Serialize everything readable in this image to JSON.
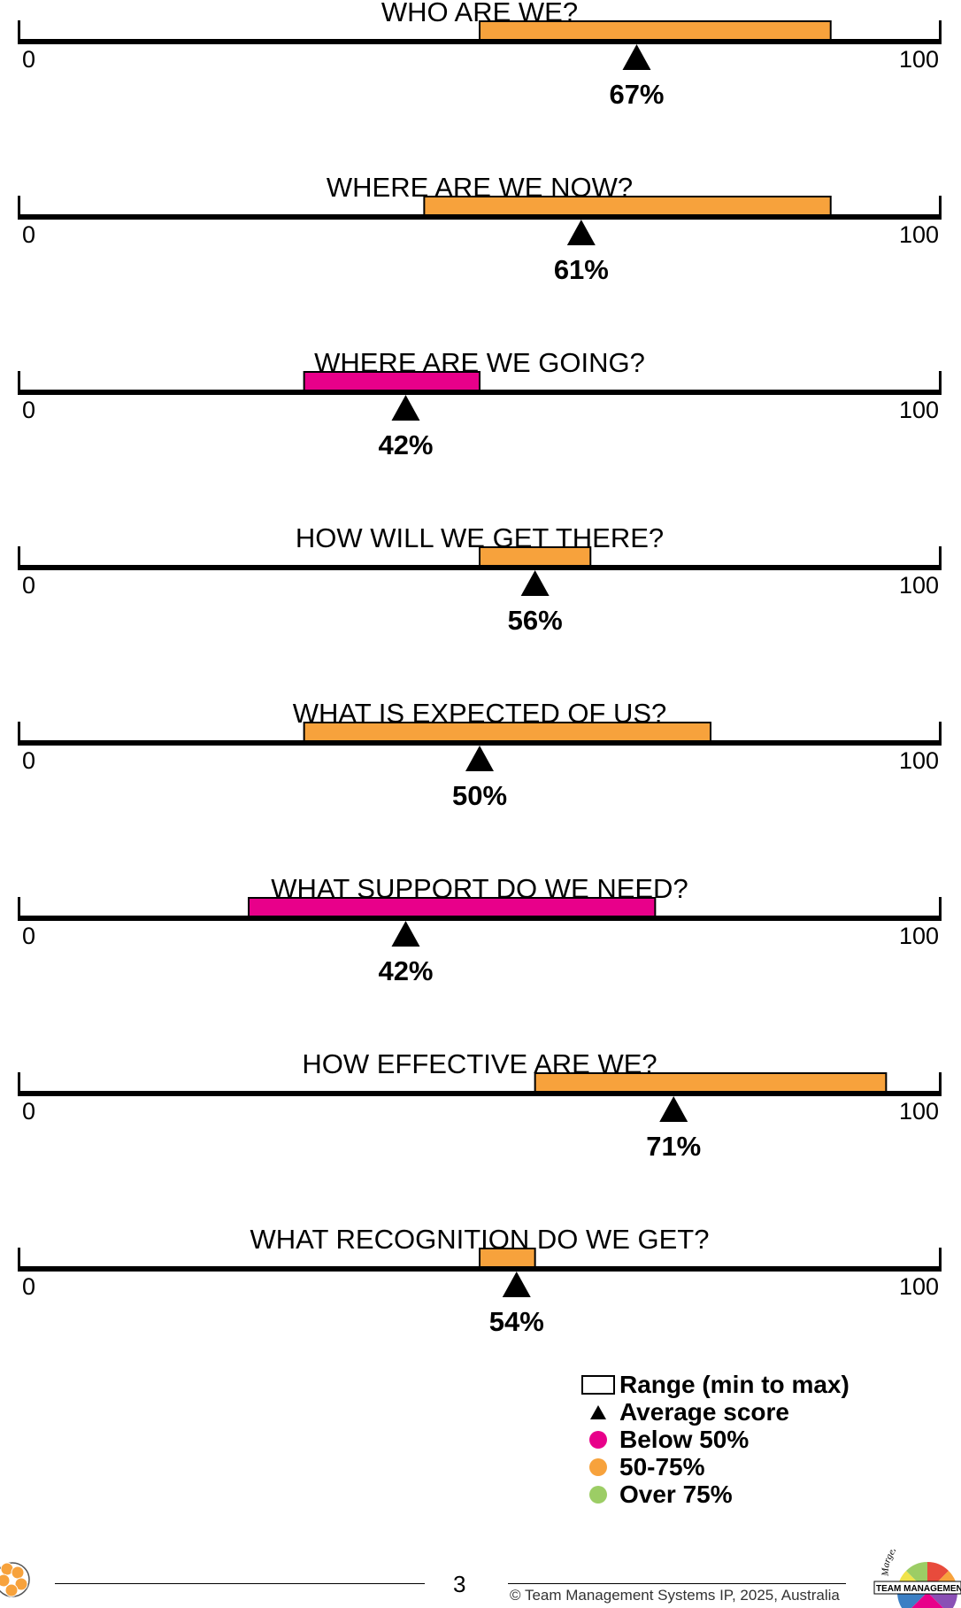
{
  "chart_data": {
    "type": "range",
    "xlim": [
      0,
      100
    ],
    "axis_min_label": "0",
    "axis_max_label": "100",
    "rows": [
      {
        "title": "WHO ARE WE?",
        "min": 50,
        "max": 88,
        "average": 67,
        "average_label": "67%",
        "band": "50-75%"
      },
      {
        "title": "WHERE ARE WE NOW?",
        "min": 44,
        "max": 88,
        "average": 61,
        "average_label": "61%",
        "band": "50-75%"
      },
      {
        "title": "WHERE ARE WE GOING?",
        "min": 31,
        "max": 50,
        "average": 42,
        "average_label": "42%",
        "band": "Below 50%"
      },
      {
        "title": "HOW WILL WE GET THERE?",
        "min": 50,
        "max": 62,
        "average": 56,
        "average_label": "56%",
        "band": "50-75%"
      },
      {
        "title": "WHAT IS EXPECTED OF US?",
        "min": 31,
        "max": 75,
        "average": 50,
        "average_label": "50%",
        "band": "50-75%"
      },
      {
        "title": "WHAT SUPPORT DO WE NEED?",
        "min": 25,
        "max": 69,
        "average": 42,
        "average_label": "42%",
        "band": "Below 50%"
      },
      {
        "title": "HOW EFFECTIVE ARE WE?",
        "min": 56,
        "max": 94,
        "average": 71,
        "average_label": "71%",
        "band": "50-75%"
      },
      {
        "title": "WHAT RECOGNITION DO WE GET?",
        "min": 50,
        "max": 56,
        "average": 54,
        "average_label": "54%",
        "band": "50-75%"
      }
    ]
  },
  "colors": {
    "Below 50%": "#e8008a",
    "50-75%": "#f7a23c",
    "Over 75%": "#9ccd65"
  },
  "legend": {
    "range_label": "Range (min to max)",
    "average_label": "Average score",
    "items": [
      {
        "label": "Below 50%",
        "color": "#e8008a"
      },
      {
        "label": "50-75%",
        "color": "#f7a23c"
      },
      {
        "label": "Over 75%",
        "color": "#9ccd65"
      }
    ]
  },
  "footer": {
    "page_number": "3",
    "copyright": "© Team Management Systems IP, 2025, Australia"
  },
  "logos": {
    "right_arc_text": "Margerison-Mc",
    "right_banner_text": "TEAM MANAGEMENT"
  }
}
